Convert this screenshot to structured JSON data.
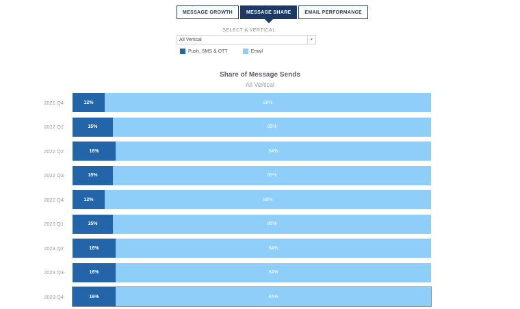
{
  "tabs": [
    {
      "label": "MESSAGE GROWTH",
      "active": false
    },
    {
      "label": "MESSAGE SHARE",
      "active": true
    },
    {
      "label": "EMAIL PERFORMANCE",
      "active": false
    }
  ],
  "filter": {
    "label": "SELECT A VERTICAL",
    "value": "All Vertical"
  },
  "chart_data": {
    "type": "bar",
    "orientation": "horizontal",
    "stacked": true,
    "title": "Share of Message Sends",
    "subtitle": "All Vertical",
    "value_format": "percent",
    "categories": [
      "2021 Q4",
      "2022 Q1",
      "2022 Q2",
      "2022 Q3",
      "2022 Q4",
      "2023 Q1",
      "2023 Q2",
      "2023 Q3",
      "2023 Q4"
    ],
    "series": [
      {
        "name": "Push, SMS & OTT",
        "color": "#2464a9",
        "values": [
          12,
          15,
          16,
          15,
          12,
          15,
          16,
          16,
          16
        ],
        "labels": [
          "12%",
          "15%",
          "16%",
          "15%",
          "12%",
          "15%",
          "16%",
          "16%",
          "16%"
        ]
      },
      {
        "name": "Email",
        "color": "#8fcef9",
        "values": [
          88,
          85,
          84,
          85,
          88,
          85,
          84,
          84,
          84
        ],
        "labels": [
          "88%",
          "85%",
          "84%",
          "85%",
          "88%",
          "85%",
          "84%",
          "84%",
          "84%"
        ]
      }
    ],
    "highlighted_category": "2023 Q4",
    "legend_position": "top-left"
  },
  "colors": {
    "navy": "#1e3a64",
    "push_bar": "#2464a9",
    "email_bar": "#8fcef9",
    "muted_text": "#9b9b9b",
    "title_text": "#5c6470"
  }
}
